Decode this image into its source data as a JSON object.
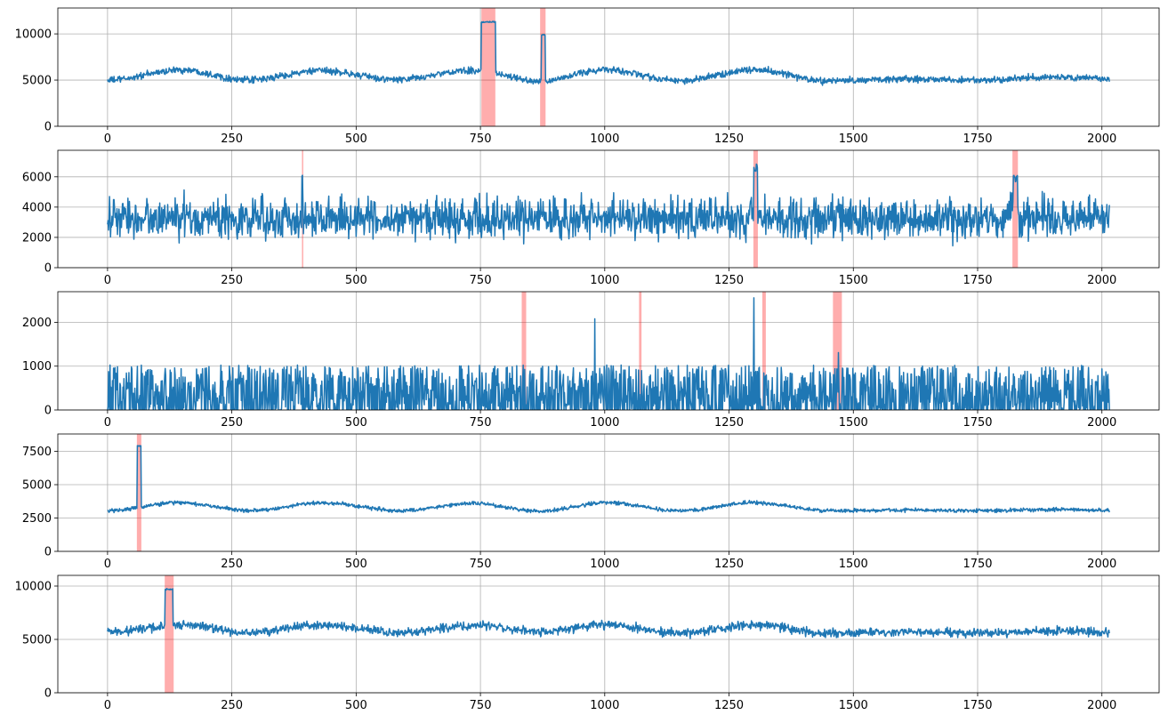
{
  "colors": {
    "line": "#1f77b4",
    "anomaly": "#ff0000",
    "grid": "#b0b0b0",
    "axes": "#000000"
  },
  "chart_data": [
    {
      "type": "line",
      "xlim": [
        -100,
        2115
      ],
      "ylim": [
        0,
        12800
      ],
      "xticks": [
        0,
        250,
        500,
        750,
        1000,
        1250,
        1500,
        1750,
        2000
      ],
      "yticks": [
        0,
        5000,
        10000
      ],
      "grid": true,
      "n_points": 2016,
      "series": [
        {
          "baseline": 5500,
          "trend": [
            [
              0,
              -500
            ],
            [
              150,
              600
            ],
            [
              280,
              -500
            ],
            [
              430,
              500
            ],
            [
              580,
              -450
            ],
            [
              730,
              500
            ],
            [
              870,
              -600
            ],
            [
              1000,
              600
            ],
            [
              1150,
              -550
            ],
            [
              1300,
              600
            ],
            [
              1450,
              -600
            ],
            [
              1600,
              -400
            ],
            [
              1750,
              -500
            ],
            [
              1900,
              -200
            ],
            [
              2015,
              -400
            ]
          ],
          "noise": 180,
          "spikes": [
            {
              "start": 752,
              "end": 780,
              "value": 11300
            },
            {
              "start": 873,
              "end": 880,
              "value": 9900
            }
          ]
        }
      ],
      "anomaly_ranges": [
        [
          752,
          780
        ],
        [
          870,
          881
        ]
      ]
    },
    {
      "type": "line",
      "xlim": [
        -100,
        2115
      ],
      "ylim": [
        0,
        7750
      ],
      "xticks": [
        0,
        250,
        500,
        750,
        1000,
        1250,
        1500,
        1750,
        2000
      ],
      "yticks": [
        0,
        2000,
        4000,
        6000
      ],
      "grid": true,
      "n_points": 2016,
      "series": [
        {
          "baseline": 3250,
          "trend": [
            [
              0,
              0
            ],
            [
              2015,
              0
            ]
          ],
          "noise": 650,
          "spikes": [
            {
              "start": 391,
              "end": 392,
              "value": 6200
            },
            {
              "start": 1300,
              "end": 1307,
              "value": 6600
            },
            {
              "start": 1822,
              "end": 1830,
              "value": 5900
            }
          ]
        }
      ],
      "anomaly_ranges": [
        [
          391,
          393
        ],
        [
          1299,
          1308
        ],
        [
          1820,
          1831
        ]
      ]
    },
    {
      "type": "line",
      "xlim": [
        -100,
        2115
      ],
      "ylim": [
        0,
        2700
      ],
      "xticks": [
        0,
        250,
        500,
        750,
        1000,
        1250,
        1500,
        1750,
        2000
      ],
      "yticks": [
        0,
        1000,
        2000
      ],
      "grid": true,
      "n_points": 2016,
      "series": [
        {
          "baseline": 320,
          "trend": [
            [
              0,
              0
            ],
            [
              2015,
              0
            ]
          ],
          "noise": 420,
          "floor": 0,
          "spikes": [
            {
              "start": 980,
              "end": 980,
              "value": 2050
            },
            {
              "start": 1300,
              "end": 1300,
              "value": 2450
            },
            {
              "start": 1470,
              "end": 1470,
              "value": 1350
            }
          ]
        }
      ],
      "anomaly_ranges": [
        [
          833,
          842
        ],
        [
          1069,
          1074
        ],
        [
          1317,
          1324
        ],
        [
          1459,
          1477
        ]
      ]
    },
    {
      "type": "line",
      "xlim": [
        -100,
        2115
      ],
      "ylim": [
        0,
        8800
      ],
      "xticks": [
        0,
        250,
        500,
        750,
        1000,
        1250,
        1500,
        1750,
        2000
      ],
      "yticks": [
        0,
        2500,
        5000,
        7500
      ],
      "grid": true,
      "n_points": 2016,
      "series": [
        {
          "baseline": 3300,
          "trend": [
            [
              0,
              -250
            ],
            [
              140,
              350
            ],
            [
              290,
              -250
            ],
            [
              430,
              350
            ],
            [
              590,
              -250
            ],
            [
              740,
              300
            ],
            [
              870,
              -300
            ],
            [
              1000,
              350
            ],
            [
              1150,
              -250
            ],
            [
              1300,
              350
            ],
            [
              1450,
              -250
            ],
            [
              1600,
              -200
            ],
            [
              1750,
              -250
            ],
            [
              1900,
              -150
            ],
            [
              2015,
              -250
            ]
          ],
          "noise": 70,
          "spikes": [
            {
              "start": 60,
              "end": 67,
              "value": 7900
            }
          ]
        }
      ],
      "anomaly_ranges": [
        [
          59,
          68
        ]
      ]
    },
    {
      "type": "line",
      "xlim": [
        -100,
        2115
      ],
      "ylim": [
        0,
        11000
      ],
      "xticks": [
        0,
        250,
        500,
        750,
        1000,
        1250,
        1500,
        1750,
        2000
      ],
      "yticks": [
        0,
        5000,
        10000
      ],
      "grid": true,
      "n_points": 2016,
      "series": [
        {
          "baseline": 5900,
          "trend": [
            [
              0,
              -200
            ],
            [
              150,
              450
            ],
            [
              290,
              -250
            ],
            [
              430,
              450
            ],
            [
              580,
              -250
            ],
            [
              740,
              400
            ],
            [
              870,
              -200
            ],
            [
              1000,
              450
            ],
            [
              1150,
              -300
            ],
            [
              1300,
              450
            ],
            [
              1450,
              -300
            ],
            [
              1600,
              -200
            ],
            [
              1750,
              -300
            ],
            [
              1900,
              -100
            ],
            [
              2015,
              -300
            ]
          ],
          "noise": 200,
          "spikes": [
            {
              "start": 116,
              "end": 131,
              "value": 9700
            }
          ]
        }
      ],
      "anomaly_ranges": [
        [
          115,
          133
        ]
      ]
    }
  ]
}
